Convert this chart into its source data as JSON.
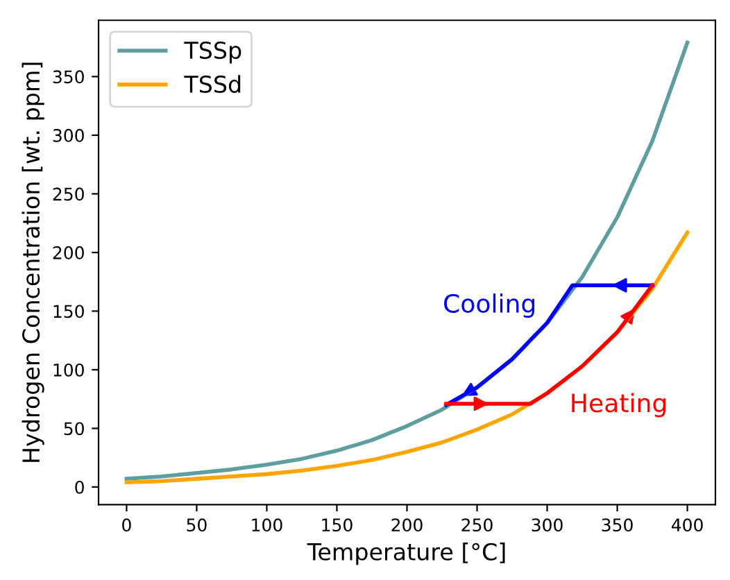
{
  "chart_data": {
    "type": "line",
    "xlabel": "Temperature [°C]",
    "ylabel": "Hydrogen Concentration [wt. ppm]",
    "x": [
      0,
      25,
      50,
      75,
      100,
      125,
      150,
      175,
      200,
      225,
      250,
      275,
      300,
      325,
      350,
      375,
      400
    ],
    "series": [
      {
        "name": "TSSp",
        "color": "#5f9ea0",
        "values": [
          7,
          9,
          12,
          15,
          19,
          24,
          31,
          40,
          52,
          66,
          85,
          109,
          140,
          179,
          230,
          295,
          379
        ]
      },
      {
        "name": "TSSd",
        "color": "#ffa500",
        "values": [
          4,
          5,
          7,
          9,
          11,
          14,
          18,
          23,
          30,
          38,
          49,
          62,
          80,
          103,
          132,
          169,
          217
        ]
      },
      {
        "name": "Cooling",
        "color": "#0000ff",
        "x": [
          375,
          318,
          300,
          275,
          250,
          228
        ],
        "values": [
          172,
          172,
          140,
          109,
          85,
          70
        ]
      },
      {
        "name": "Heating",
        "color": "#ff0000",
        "x": [
          228,
          288,
          300,
          325,
          350,
          375
        ],
        "values": [
          71,
          71,
          80,
          103,
          132,
          172
        ]
      }
    ],
    "xlim": [
      -20,
      420
    ],
    "ylim": [
      -15,
      398
    ],
    "xticks": [
      0,
      50,
      100,
      150,
      200,
      250,
      300,
      350,
      400
    ],
    "yticks": [
      0,
      50,
      100,
      150,
      200,
      250,
      300,
      350
    ],
    "legend": "top left",
    "grid": false
  }
}
